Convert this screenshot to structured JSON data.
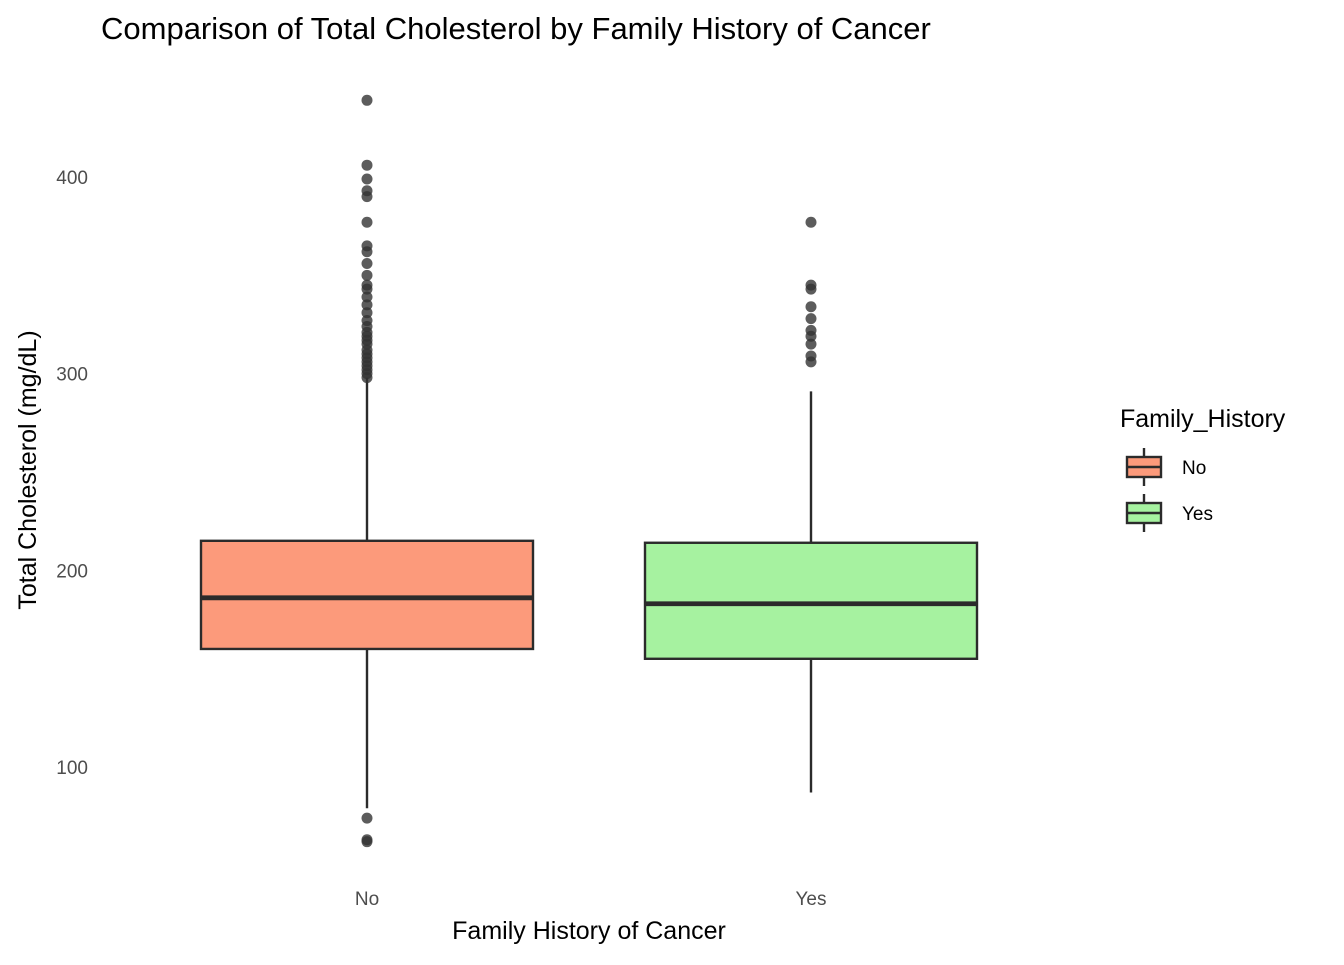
{
  "chart_data": {
    "type": "boxplot",
    "title": "Comparison of Total Cholesterol by Family History of Cancer",
    "xlabel": "Family History of Cancer",
    "ylabel": "Total Cholesterol (mg/dL)",
    "ylim": [
      40,
      450
    ],
    "yticks": [
      "100",
      "200",
      "300",
      "400"
    ],
    "grid": false,
    "legend": {
      "title": "Family_History",
      "placement": "right",
      "entries": [
        "No",
        "Yes"
      ]
    },
    "categories": [
      "No",
      "Yes"
    ],
    "colors": {
      "No": "#FC9A7B",
      "Yes": "#A6F2A0",
      "outline": "#2b2b2b",
      "outlier": "#333333"
    },
    "boxes": [
      {
        "category": "No",
        "whisker_low": 79,
        "q1": 160,
        "median": 186,
        "q3": 215,
        "whisker_high": 298,
        "outliers": [
          439,
          406,
          399,
          393,
          390,
          377,
          365,
          362,
          356,
          350,
          345,
          343,
          339,
          335,
          331,
          327,
          324,
          321,
          319,
          317,
          315,
          312,
          310,
          308,
          306,
          304,
          302,
          300,
          298,
          74,
          63,
          62
        ]
      },
      {
        "category": "Yes",
        "whisker_low": 87,
        "q1": 155,
        "median": 183,
        "q3": 214,
        "whisker_high": 291,
        "outliers": [
          377,
          345,
          343,
          334,
          328,
          322,
          319,
          315,
          309,
          306
        ]
      }
    ]
  }
}
